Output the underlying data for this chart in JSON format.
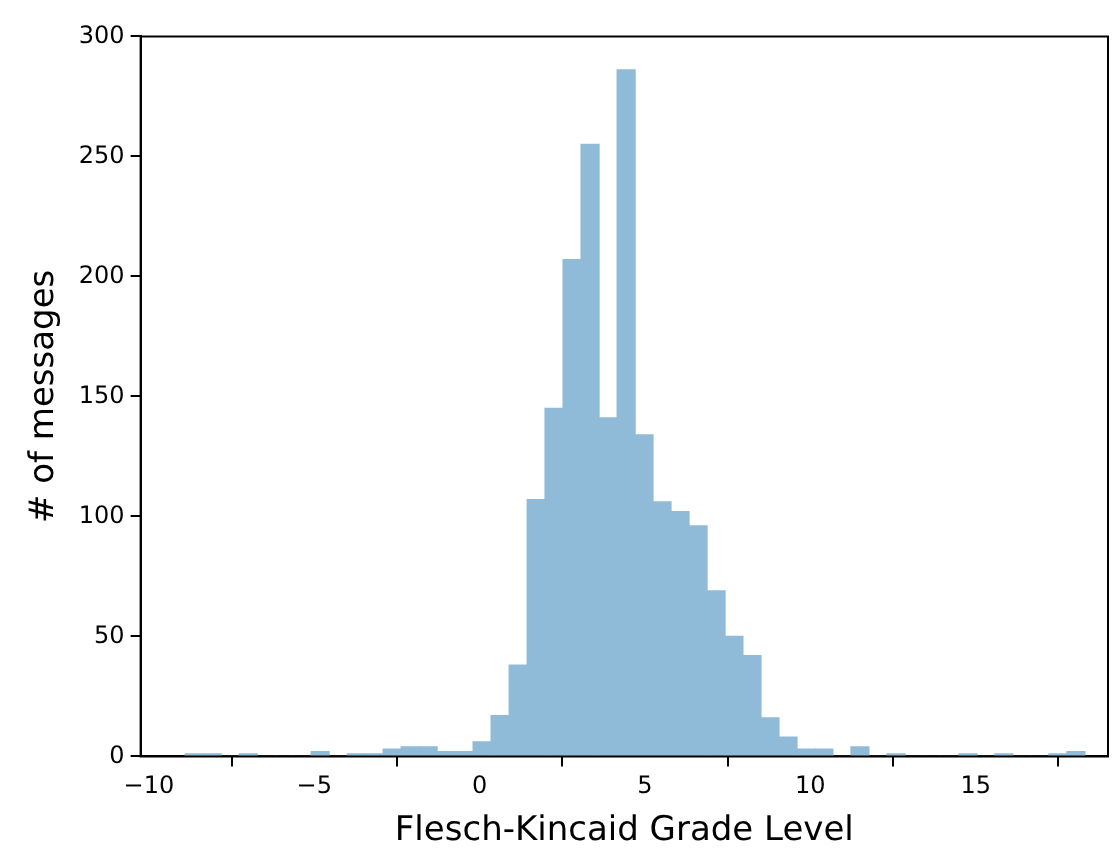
{
  "chart_data": {
    "type": "histogram",
    "xlabel": "Flesch-Kincaid Grade Level",
    "ylabel": "# of messages",
    "bins": [
      -8.9,
      -8.36,
      -7.81,
      -7.27,
      -6.72,
      -6.18,
      -5.64,
      -5.09,
      -4.55,
      -4.0,
      -3.46,
      -2.92,
      -2.37,
      -1.83,
      -1.28,
      -0.74,
      -0.2,
      0.35,
      0.89,
      1.44,
      1.98,
      2.52,
      3.07,
      3.61,
      4.16,
      4.7,
      5.24,
      5.79,
      6.33,
      6.88,
      7.42,
      7.96,
      8.51,
      9.05,
      9.6,
      10.14,
      10.68,
      11.23,
      11.77,
      12.32,
      12.86,
      13.4,
      13.95,
      14.49,
      15.04,
      15.58,
      16.12,
      16.67,
      17.21,
      17.76,
      18.3
    ],
    "values": [
      1,
      1,
      0,
      1,
      0,
      0,
      0,
      2,
      0,
      1,
      1,
      3,
      4,
      4,
      2,
      2,
      6,
      17,
      38,
      107,
      145,
      207,
      255,
      141,
      286,
      134,
      106,
      102,
      96,
      69,
      50,
      42,
      16,
      8,
      3,
      3,
      0,
      4,
      0,
      1,
      0,
      0,
      0,
      1,
      0,
      1,
      0,
      0,
      1,
      2
    ],
    "color": "#8fbbd9",
    "xlim": [
      -10.25,
      19.0
    ],
    "xticks": [
      -10,
      -5,
      0,
      5,
      10,
      15
    ],
    "ylim": [
      0,
      300
    ],
    "yticks": [
      0,
      50,
      100,
      150,
      200,
      250,
      300
    ],
    "grid": false,
    "legend": false
  }
}
